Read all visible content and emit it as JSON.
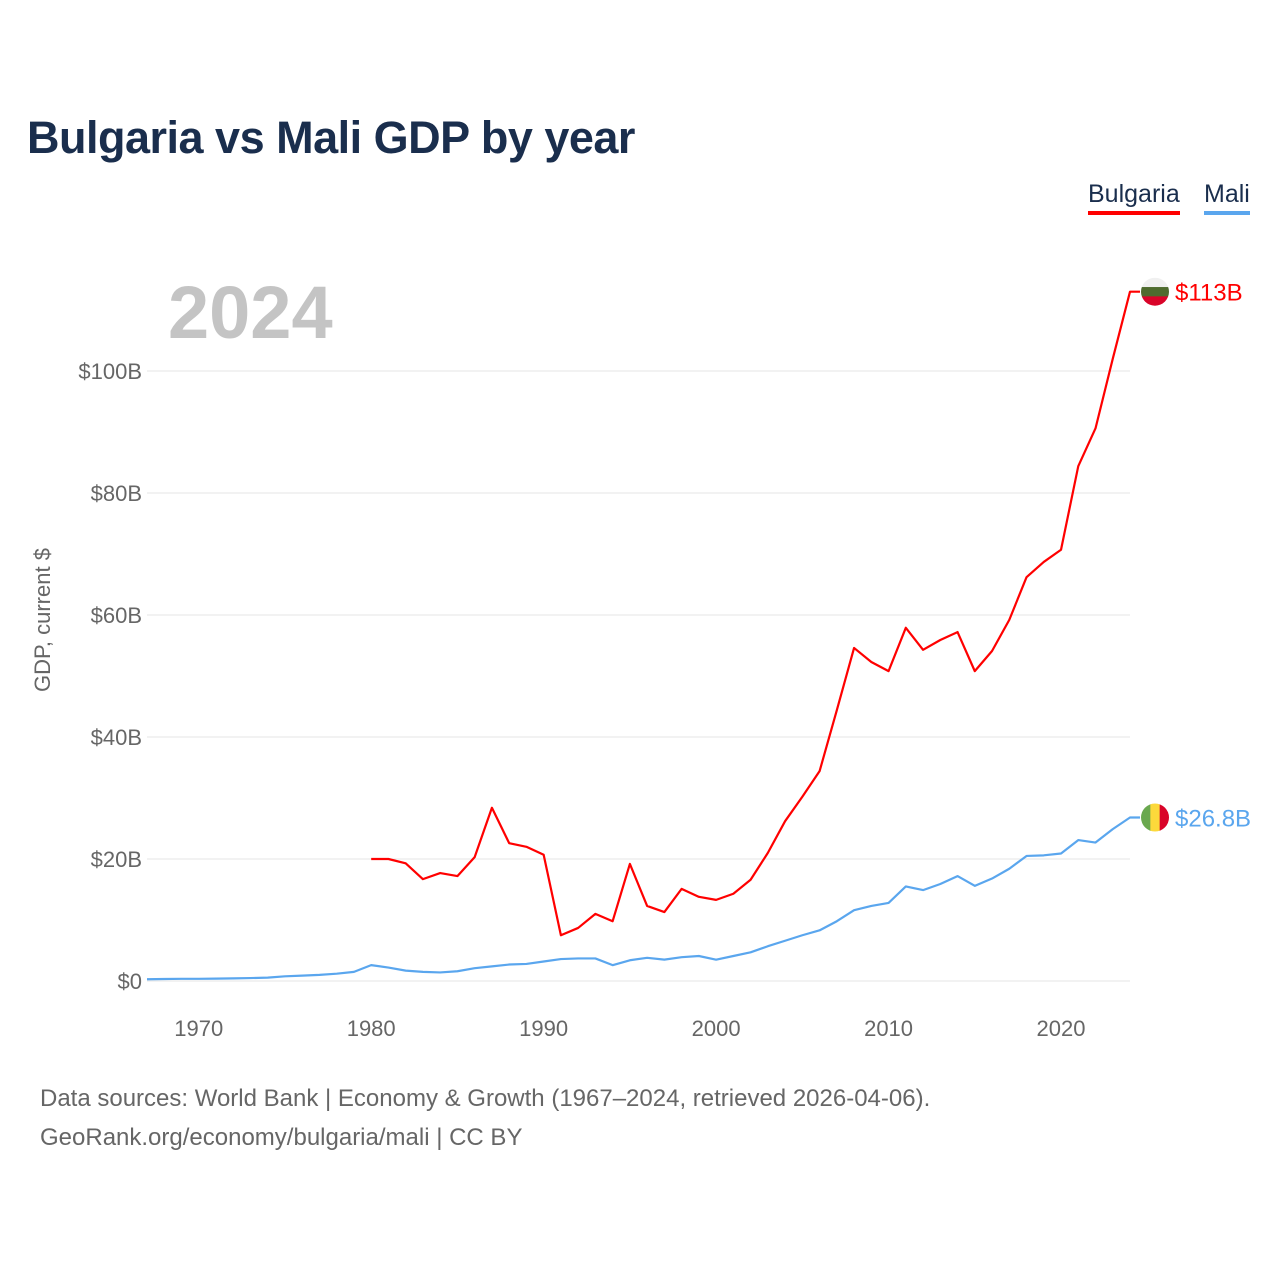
{
  "chart_data": {
    "type": "line",
    "title": "Bulgaria vs Mali GDP by year",
    "ylabel": "GDP, current $",
    "xlabel": "",
    "year_watermark": "2024",
    "xlim": [
      1967,
      2024
    ],
    "ylim": [
      0,
      113
    ],
    "grid": true,
    "legend_placement": "top-right",
    "xticks": [
      {
        "v": 1970,
        "label": "1970"
      },
      {
        "v": 1980,
        "label": "1980"
      },
      {
        "v": 1990,
        "label": "1990"
      },
      {
        "v": 2000,
        "label": "2000"
      },
      {
        "v": 2010,
        "label": "2010"
      },
      {
        "v": 2020,
        "label": "2020"
      }
    ],
    "yticks": [
      {
        "v": 0,
        "label": "$0"
      },
      {
        "v": 20,
        "label": "$20B"
      },
      {
        "v": 40,
        "label": "$40B"
      },
      {
        "v": 60,
        "label": "$60B"
      },
      {
        "v": 80,
        "label": "$80B"
      },
      {
        "v": 100,
        "label": "$100B"
      }
    ],
    "series": [
      {
        "name": "Bulgaria",
        "color": "#ff0000",
        "end_label": "$113B",
        "flag": [
          "#f0f0f0",
          "#4e6b2e",
          "#d90429"
        ],
        "x0": 1980,
        "values": [
          20.0,
          20.0,
          19.3,
          16.7,
          17.7,
          17.2,
          20.3,
          28.4,
          22.6,
          22.0,
          20.7,
          7.5,
          8.7,
          11.0,
          9.8,
          19.2,
          12.3,
          11.3,
          15.1,
          13.8,
          13.3,
          14.3,
          16.6,
          21.0,
          26.2,
          30.2,
          34.4,
          44.4,
          54.6,
          52.3,
          50.8,
          57.9,
          54.3,
          55.9,
          57.2,
          50.8,
          54.1,
          59.2,
          66.2,
          68.7,
          70.7,
          84.4,
          90.6,
          102.0,
          113.0
        ]
      },
      {
        "name": "Mali",
        "color": "#5aa6ee",
        "end_label": "$26.8B",
        "flag": [
          "#6aa84f",
          "#fcd93b",
          "#d90429"
        ],
        "x0": 1967,
        "values": [
          0.29,
          0.33,
          0.36,
          0.36,
          0.39,
          0.43,
          0.48,
          0.55,
          0.77,
          0.88,
          1.0,
          1.2,
          1.5,
          2.6,
          2.2,
          1.7,
          1.5,
          1.4,
          1.6,
          2.1,
          2.4,
          2.7,
          2.8,
          3.2,
          3.6,
          3.7,
          3.7,
          2.6,
          3.4,
          3.8,
          3.5,
          3.9,
          4.1,
          3.5,
          4.1,
          4.7,
          5.7,
          6.6,
          7.5,
          8.3,
          9.8,
          11.6,
          12.3,
          12.8,
          15.5,
          14.9,
          15.9,
          17.2,
          15.6,
          16.8,
          18.4,
          20.5,
          20.6,
          20.9,
          23.1,
          22.7,
          24.9,
          26.8
        ]
      }
    ]
  },
  "footer": {
    "line1": "Data sources: World Bank | Economy & Growth (1967–2024, retrieved 2026-04-06).",
    "line2": "GeoRank.org/economy/bulgaria/mali | CC BY"
  }
}
